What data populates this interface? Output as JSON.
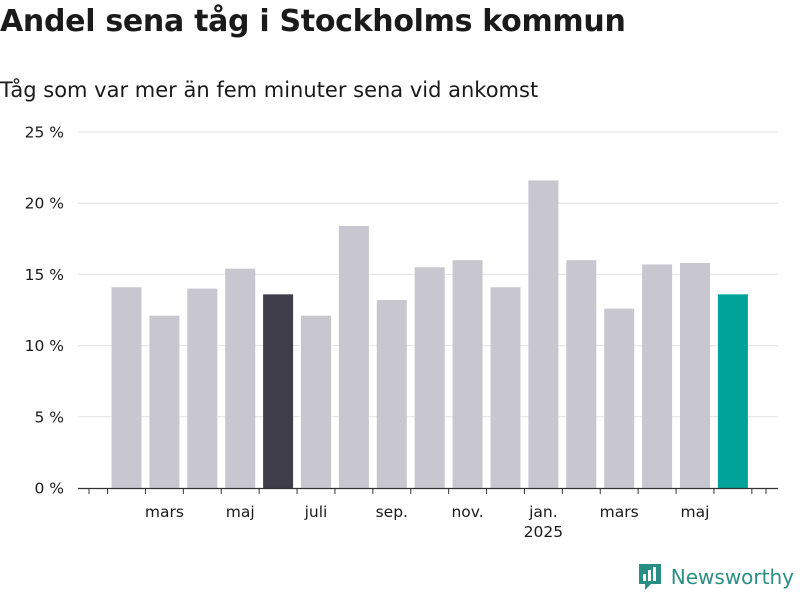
{
  "chart_data": {
    "type": "bar",
    "title": "Andel sena tåg i Stockholms kommun",
    "subtitle": "Tåg som var mer än fem minuter sena vid ankomst",
    "x": [
      "2024-02",
      "2024-03",
      "2024-04",
      "2024-05",
      "2024-06",
      "2024-07",
      "2024-08",
      "2024-09",
      "2024-10",
      "2024-11",
      "2024-12",
      "2025-01",
      "2025-02",
      "2025-03",
      "2025-04",
      "2025-05",
      "2025-06"
    ],
    "values": [
      14.1,
      12.1,
      14.0,
      15.4,
      13.6,
      12.1,
      18.4,
      13.2,
      15.5,
      16.0,
      14.1,
      21.6,
      16.0,
      12.6,
      15.7,
      15.8,
      13.6
    ],
    "highlight": {
      "2024-06": "#3f3d4a",
      "2025-06": "#00a398"
    },
    "bar_color": "#c8c7cf",
    "ylim": [
      0,
      25
    ],
    "yticks": [
      0,
      5,
      10,
      15,
      20,
      25
    ],
    "ytick_labels": [
      "0 %",
      "5 %",
      "10 %",
      "15 %",
      "20 %",
      "25 %"
    ],
    "xtick_labels": [
      {
        "x": "2024-03",
        "label": "mars"
      },
      {
        "x": "2024-05",
        "label": "maj"
      },
      {
        "x": "2024-07",
        "label": "juli"
      },
      {
        "x": "2024-09",
        "label": "sep."
      },
      {
        "x": "2024-11",
        "label": "nov."
      },
      {
        "x": "2025-01",
        "label": "jan.",
        "sublabel": "2025"
      },
      {
        "x": "2025-03",
        "label": "mars"
      },
      {
        "x": "2025-05",
        "label": "maj"
      }
    ],
    "grid": true
  },
  "brand": {
    "name": "Newsworthy"
  }
}
